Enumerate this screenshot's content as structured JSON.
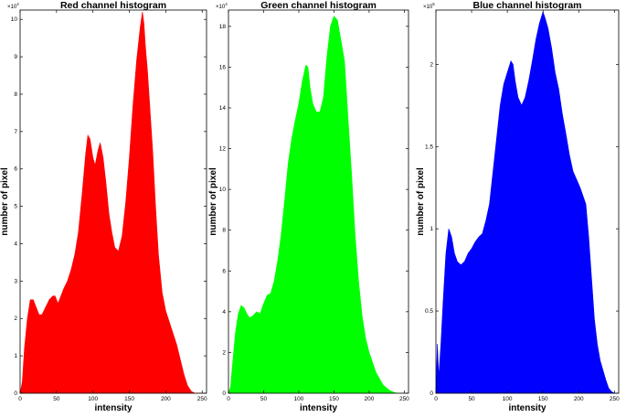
{
  "figure": {
    "background": "#ffffff"
  },
  "chart_data": [
    {
      "type": "area",
      "title": "Red channel histogram",
      "xlabel": "intensity",
      "ylabel": "number of pixel",
      "y_multiplier": "×10",
      "y_multiplier_exp": "4",
      "color": "#ff0000",
      "xlim": [
        0,
        256
      ],
      "ylim": [
        0,
        10.25
      ],
      "xticks": [
        0,
        50,
        100,
        150,
        200,
        250
      ],
      "yticks": [
        0,
        1,
        2,
        3,
        4,
        5,
        6,
        7,
        8,
        9,
        10
      ],
      "ytick_labels": [
        "0",
        "1",
        "2",
        "3",
        "4",
        "5",
        "6",
        "7",
        "8",
        "9",
        "10"
      ],
      "series": [
        {
          "x": [
            0,
            3,
            6,
            10,
            14,
            18,
            22,
            26,
            30,
            35,
            40,
            45,
            48,
            52,
            56,
            60,
            65,
            70,
            75,
            80,
            85,
            90,
            93,
            96,
            100,
            103,
            107,
            110,
            114,
            118,
            122,
            126,
            130,
            135,
            140,
            145,
            150,
            155,
            160,
            165,
            168,
            170,
            172,
            175,
            178,
            182,
            186,
            190,
            195,
            200,
            205,
            210,
            215,
            220,
            225,
            230,
            235,
            240,
            244,
            248,
            252
          ],
          "y": [
            0,
            0.3,
            1.2,
            2.0,
            2.5,
            2.5,
            2.3,
            2.1,
            2.1,
            2.3,
            2.5,
            2.6,
            2.6,
            2.4,
            2.6,
            2.8,
            3.0,
            3.3,
            3.7,
            4.3,
            5.3,
            6.4,
            6.9,
            6.8,
            6.3,
            6.1,
            6.5,
            6.7,
            6.3,
            5.6,
            4.8,
            4.3,
            3.9,
            3.8,
            4.2,
            5.1,
            6.3,
            7.7,
            8.9,
            9.8,
            10.2,
            9.9,
            9.3,
            8.6,
            7.7,
            6.5,
            5.0,
            3.7,
            2.7,
            2.2,
            1.9,
            1.6,
            1.3,
            0.9,
            0.5,
            0.2,
            0.05,
            0,
            0,
            0,
            0
          ]
        }
      ]
    },
    {
      "type": "area",
      "title": "Green channel histogram",
      "xlabel": "intensity",
      "ylabel": "number of pixel",
      "y_multiplier": "×10",
      "y_multiplier_exp": "4",
      "color": "#00ff00",
      "xlim": [
        0,
        256
      ],
      "ylim": [
        0,
        18.8
      ],
      "xticks": [
        0,
        50,
        100,
        150,
        200,
        250
      ],
      "yticks": [
        0,
        2,
        4,
        6,
        8,
        10,
        12,
        14,
        16,
        18
      ],
      "ytick_labels": [
        "0",
        "2",
        "4",
        "6",
        "8",
        "10",
        "12",
        "14",
        "16",
        "18"
      ],
      "series": [
        {
          "x": [
            0,
            3,
            6,
            10,
            14,
            18,
            22,
            26,
            30,
            35,
            40,
            45,
            50,
            55,
            60,
            65,
            70,
            75,
            80,
            85,
            90,
            95,
            100,
            105,
            110,
            113,
            116,
            120,
            125,
            130,
            135,
            140,
            145,
            150,
            155,
            160,
            165,
            170,
            175,
            180,
            185,
            190,
            195,
            200,
            205,
            210,
            215,
            220,
            225,
            230,
            235,
            240,
            245,
            250
          ],
          "y": [
            0,
            0.3,
            1.5,
            3.0,
            3.9,
            4.3,
            4.2,
            3.9,
            3.7,
            3.8,
            4.0,
            3.9,
            4.4,
            4.8,
            4.9,
            5.5,
            6.5,
            7.8,
            9.5,
            11.3,
            12.5,
            13.4,
            14.2,
            15.3,
            16.1,
            16.0,
            15.0,
            14.2,
            13.8,
            13.8,
            14.5,
            16.5,
            18.0,
            18.5,
            18.3,
            17.3,
            16.3,
            13.5,
            10.8,
            7.8,
            5.5,
            3.8,
            2.7,
            2.0,
            1.5,
            1.0,
            0.7,
            0.4,
            0.25,
            0.12,
            0.05,
            0,
            0,
            0
          ]
        }
      ]
    },
    {
      "type": "area",
      "title": "Blue channel histogram",
      "xlabel": "intensity",
      "ylabel": "number of pixel",
      "y_multiplier": "×10",
      "y_multiplier_exp": "5",
      "color": "#0000ff",
      "xlim": [
        0,
        256
      ],
      "ylim": [
        0,
        2.33
      ],
      "xticks": [
        0,
        50,
        100,
        150,
        200,
        250
      ],
      "yticks": [
        0,
        0.5,
        1,
        1.5,
        2
      ],
      "ytick_labels": [
        "0",
        "0.5",
        "1",
        "1.5",
        "2"
      ],
      "series": [
        {
          "x": [
            0,
            2,
            4,
            7,
            10,
            14,
            18,
            22,
            26,
            30,
            35,
            40,
            45,
            50,
            55,
            60,
            65,
            70,
            75,
            80,
            85,
            90,
            95,
            100,
            105,
            108,
            111,
            115,
            120,
            125,
            130,
            135,
            140,
            145,
            150,
            153,
            157,
            162,
            167,
            172,
            177,
            182,
            187,
            192,
            197,
            202,
            206,
            210,
            214,
            218,
            222,
            226,
            230,
            234,
            238,
            242,
            246,
            250,
            254
          ],
          "y": [
            0,
            0.3,
            0.1,
            0.3,
            0.55,
            0.85,
            1.0,
            0.95,
            0.85,
            0.8,
            0.78,
            0.8,
            0.85,
            0.88,
            0.92,
            0.95,
            0.97,
            1.05,
            1.15,
            1.35,
            1.55,
            1.75,
            1.88,
            1.95,
            2.02,
            2.0,
            1.9,
            1.8,
            1.75,
            1.8,
            1.9,
            2.02,
            2.15,
            2.25,
            2.32,
            2.28,
            2.22,
            2.1,
            1.95,
            1.85,
            1.7,
            1.58,
            1.45,
            1.35,
            1.3,
            1.25,
            1.2,
            1.15,
            0.95,
            0.7,
            0.45,
            0.3,
            0.2,
            0.14,
            0.08,
            0.03,
            0.01,
            0,
            0
          ]
        }
      ]
    }
  ]
}
